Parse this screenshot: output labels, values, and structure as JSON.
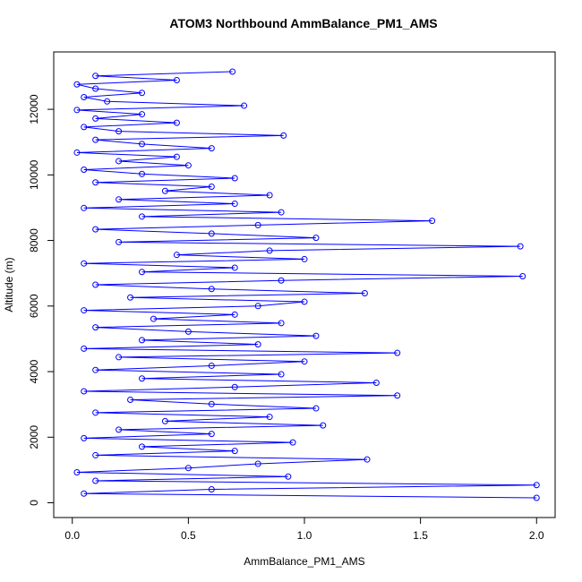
{
  "chart_data": {
    "type": "line",
    "title": "ATOM3 Northbound AmmBalance_PM1_AMS",
    "x_label": "AmmBalance_PM1_AMS",
    "y_label": "Altitude (m)",
    "series": [
      {
        "color": "#0000ff",
        "x": [
          2.0,
          0.05,
          0.6,
          2.0,
          0.1,
          0.93,
          0.02,
          0.5,
          0.8,
          1.27,
          0.1,
          0.7,
          0.3,
          0.95,
          0.05,
          0.6,
          0.2,
          1.08,
          0.4,
          0.85,
          0.1,
          1.05,
          0.6,
          0.25,
          1.4,
          0.05,
          0.7,
          1.31,
          0.3,
          0.9,
          0.1,
          0.6,
          1.0,
          0.2,
          1.4,
          0.05,
          0.8,
          0.3,
          1.05,
          0.5,
          0.1,
          0.9,
          0.35,
          0.7,
          0.05,
          0.8,
          1.0,
          0.25,
          1.26,
          0.6,
          0.1,
          0.9,
          1.94,
          0.3,
          0.7,
          0.05,
          1.0,
          0.45,
          0.85,
          1.93,
          0.2,
          1.05,
          0.6,
          0.1,
          0.8,
          1.55,
          0.3,
          0.9,
          0.05,
          0.7,
          0.2,
          0.85,
          0.4,
          0.6,
          0.1,
          0.7,
          0.3,
          0.05,
          0.5,
          0.2,
          0.45,
          0.02,
          0.6,
          0.3,
          0.1,
          0.91,
          0.2,
          0.05,
          0.45,
          0.1,
          0.3,
          0.02,
          0.74,
          0.15,
          0.05,
          0.3,
          0.1,
          0.02,
          0.45,
          0.1,
          0.69
        ],
        "values": [
          150,
          280,
          410,
          540,
          670,
          800,
          930,
          1060,
          1190,
          1320,
          1450,
          1580,
          1710,
          1840,
          1970,
          2100,
          2230,
          2360,
          2490,
          2620,
          2750,
          2880,
          3010,
          3140,
          3270,
          3400,
          3530,
          3660,
          3790,
          3920,
          4050,
          4180,
          4310,
          4440,
          4570,
          4700,
          4830,
          4960,
          5090,
          5220,
          5350,
          5480,
          5610,
          5740,
          5870,
          6000,
          6130,
          6260,
          6390,
          6520,
          6650,
          6780,
          6910,
          7040,
          7170,
          7300,
          7430,
          7560,
          7690,
          7820,
          7950,
          8080,
          8210,
          8340,
          8470,
          8600,
          8730,
          8860,
          8990,
          9120,
          9250,
          9380,
          9510,
          9640,
          9770,
          9900,
          10030,
          10160,
          10290,
          10420,
          10550,
          10680,
          10810,
          10940,
          11070,
          11200,
          11330,
          11460,
          11590,
          11720,
          11850,
          11980,
          12110,
          12240,
          12370,
          12500,
          12630,
          12760,
          12890,
          13020,
          13150
        ]
      }
    ],
    "xlim": [
      -0.08,
      2.08
    ],
    "ylim": [
      -450,
      13750
    ],
    "xticks": [
      {
        "value": 0,
        "label": "0.0"
      },
      {
        "value": 0.5,
        "label": "0.5"
      },
      {
        "value": 1,
        "label": "1.0"
      },
      {
        "value": 1.5,
        "label": "1.5"
      },
      {
        "value": 2,
        "label": "2.0"
      }
    ],
    "yticks": [
      0,
      2000,
      4000,
      6000,
      8000,
      10000,
      12000
    ]
  }
}
